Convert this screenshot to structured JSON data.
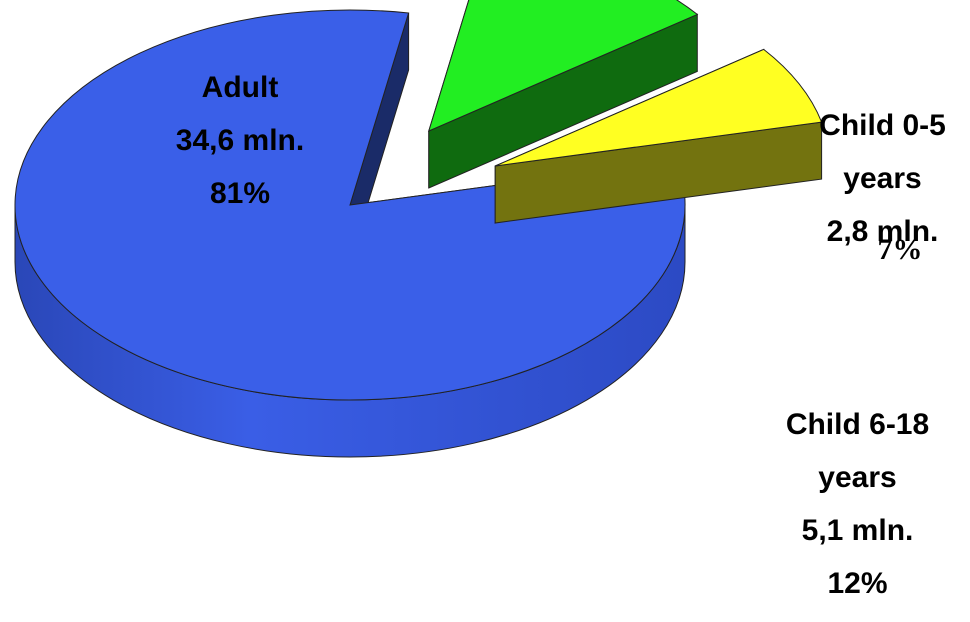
{
  "chart_data": {
    "type": "pie",
    "style": "3d-exploded",
    "slices": [
      {
        "category": "Adult",
        "value_mln": 34.6,
        "value_label": "34,6 mln.",
        "percent": 81,
        "percent_label": "81%",
        "color": "#3a5fe8"
      },
      {
        "category": "Child 6-18 years",
        "category_lines": [
          "Child 6-18",
          "years"
        ],
        "value_mln": 5.1,
        "value_label": "5,1 mln.",
        "percent": 12,
        "percent_label": "12%",
        "color": "#22ee22"
      },
      {
        "category": "Child 0-5 years",
        "category_lines": [
          "Child 0-5",
          "years"
        ],
        "value_mln": 2.8,
        "value_label": "2,8 mln.",
        "percent": 7,
        "percent_label": "7%",
        "color": "#ffff22"
      }
    ],
    "legend": "none"
  }
}
